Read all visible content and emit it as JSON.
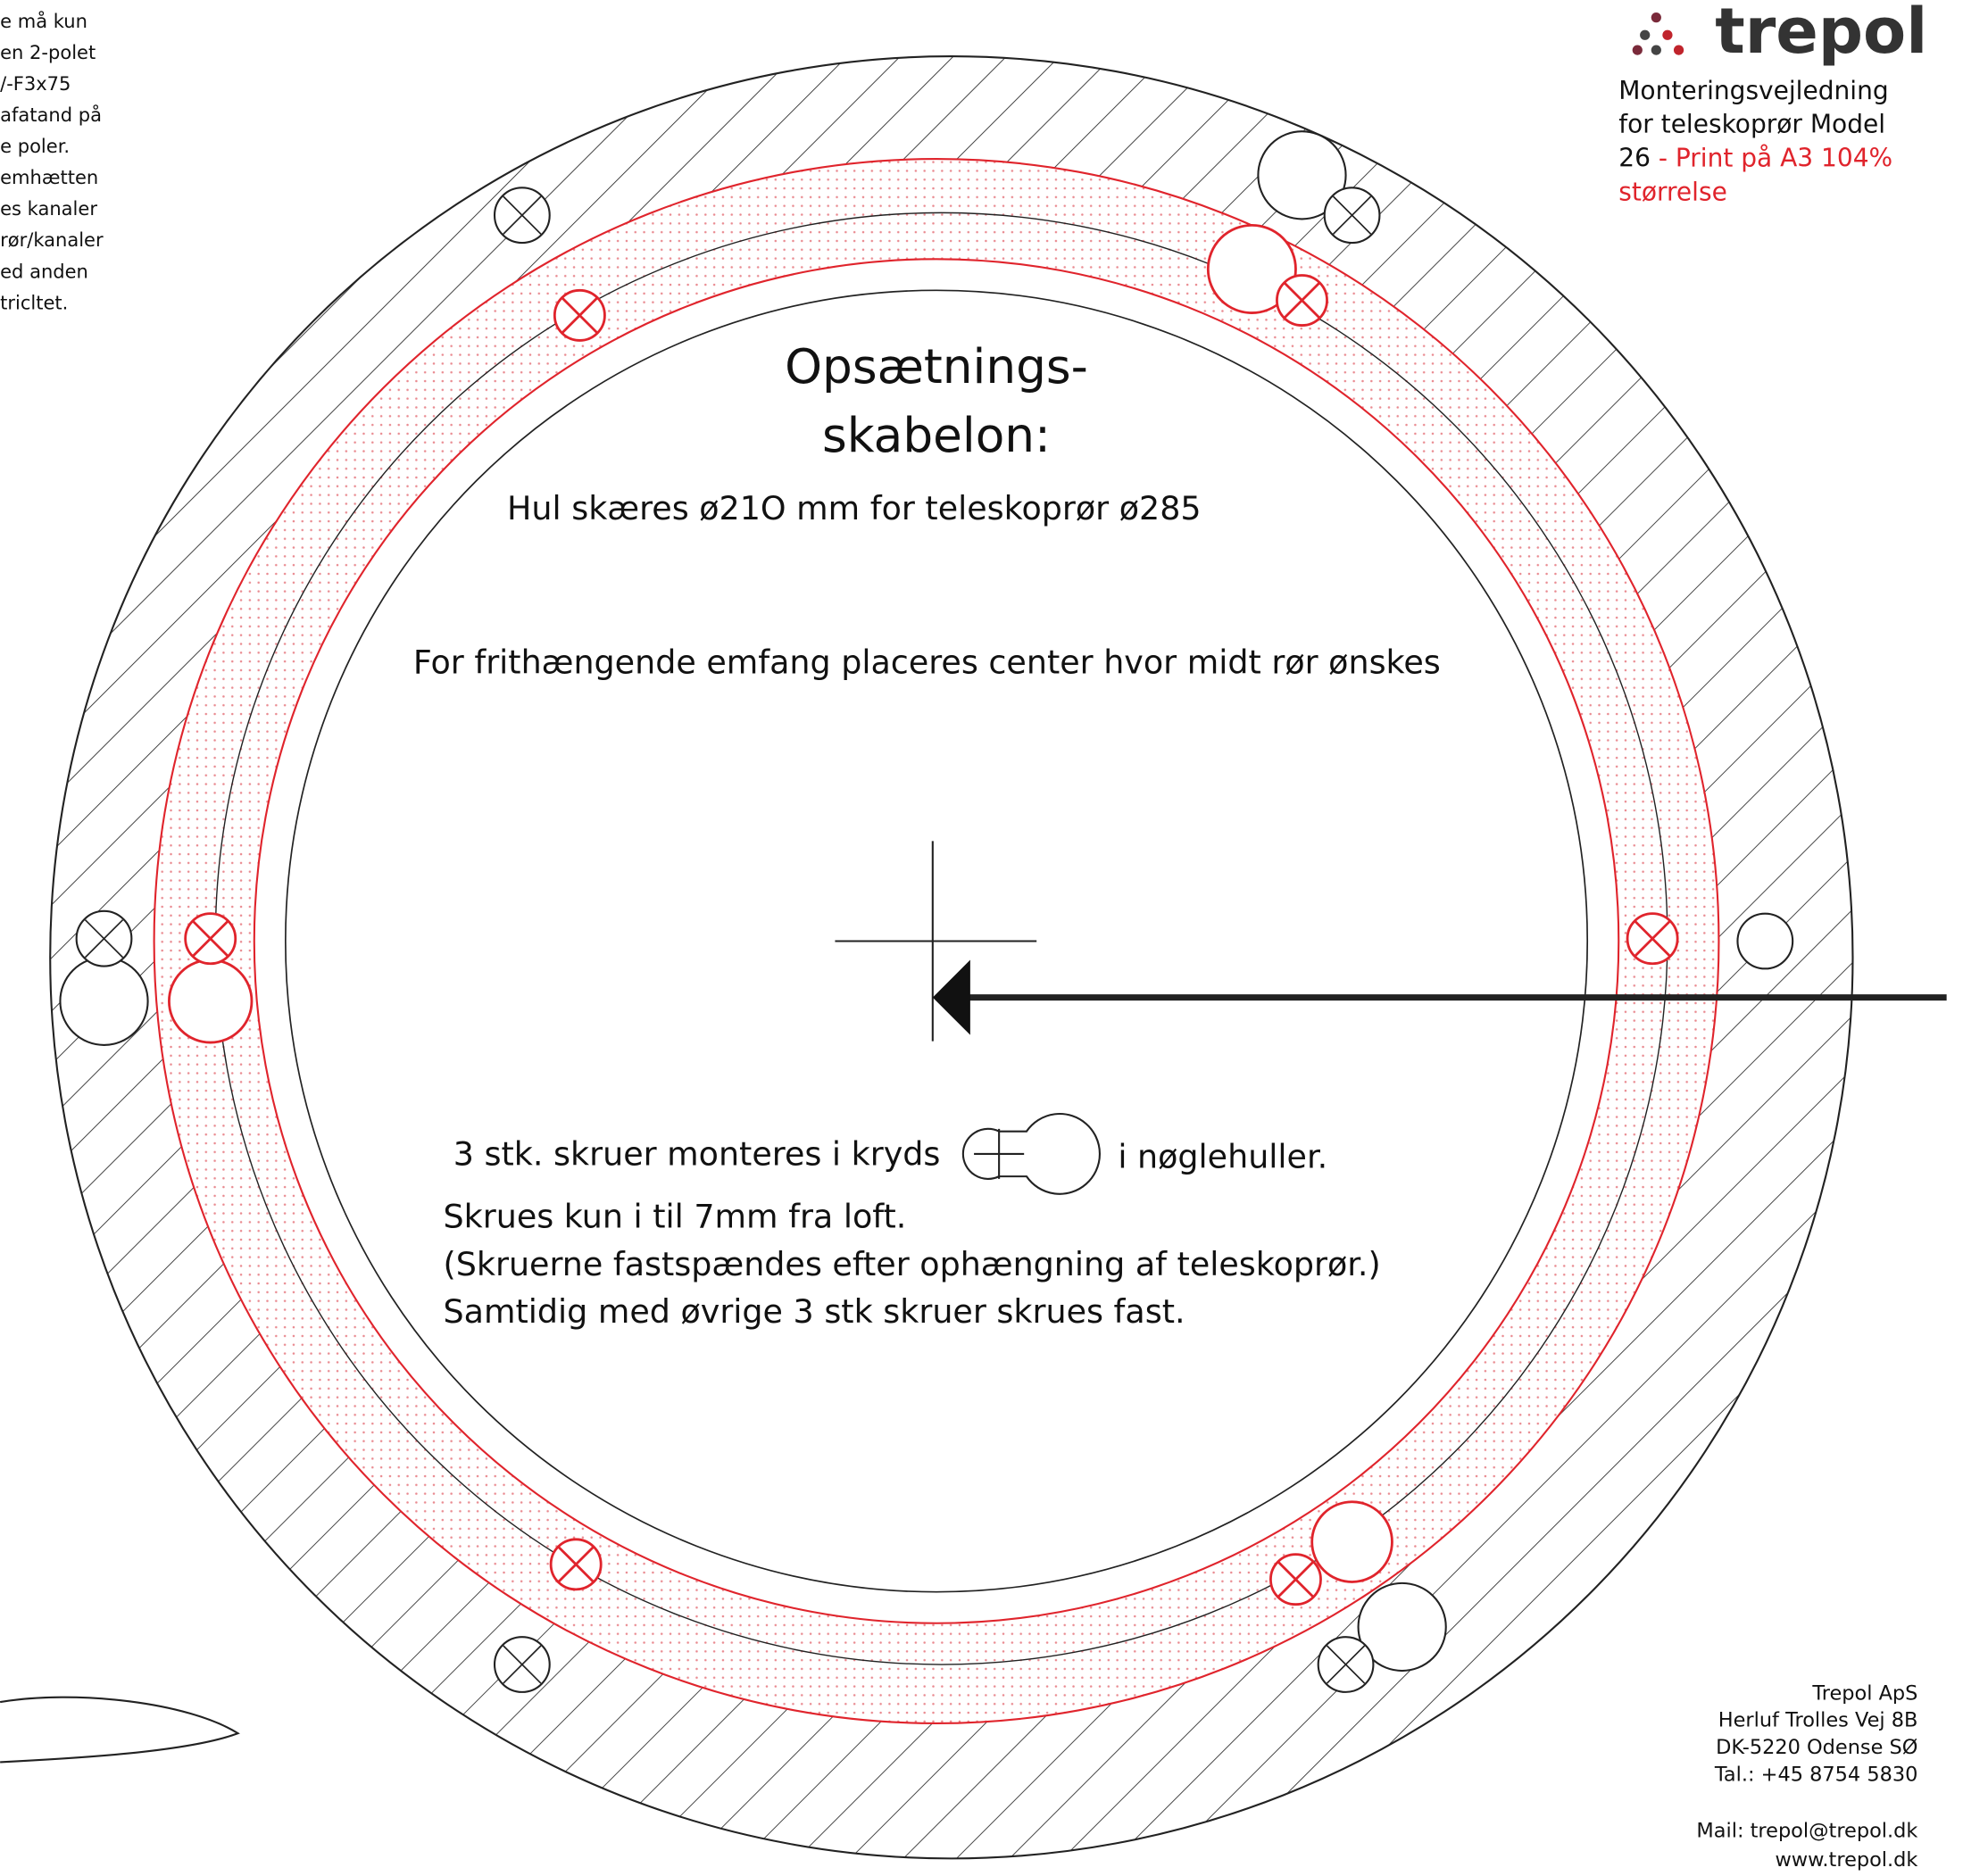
{
  "side_note": {
    "lines": [
      "e må kun",
      "en 2-polet",
      "/-F3x75",
      "afatand på",
      "e poler.",
      "emhætten",
      "es kanaler",
      "rør/kanaler",
      "ed anden",
      "tricltet."
    ]
  },
  "header": {
    "logo": "trepol",
    "line1": "Monteringsvejledning",
    "line2": "for teleskoprør Model",
    "line3_model": "26",
    "line3_note": " - Print på A3 104%",
    "line4": "størrelse"
  },
  "template": {
    "title_line1": "Opsætnings-",
    "title_line2": "skabelon:",
    "hole": "Hul skæres ø21O mm for teleskoprør ø285",
    "centering": "For frithængende emfang placeres center hvor midt rør ønskes",
    "screws": "3 stk. skruer monteres i kryds",
    "screws_end": "i nøglehuller.",
    "notes": [
      "Skrues kun i til 7mm fra loft.",
      "(Skruerne fastspændes efter ophængning af teleskoprør.)",
      "Samtidig med øvrige 3 stk skruer skrues fast."
    ]
  },
  "footer": {
    "address": [
      "Trepol ApS",
      "Herluf Trolles Vej 8B",
      "DK-5220 Odense SØ",
      "Tal.:    +45 8754 5830"
    ],
    "contact": [
      "Mail: trepol@trepol.dk",
      "www.trepol.dk"
    ]
  }
}
